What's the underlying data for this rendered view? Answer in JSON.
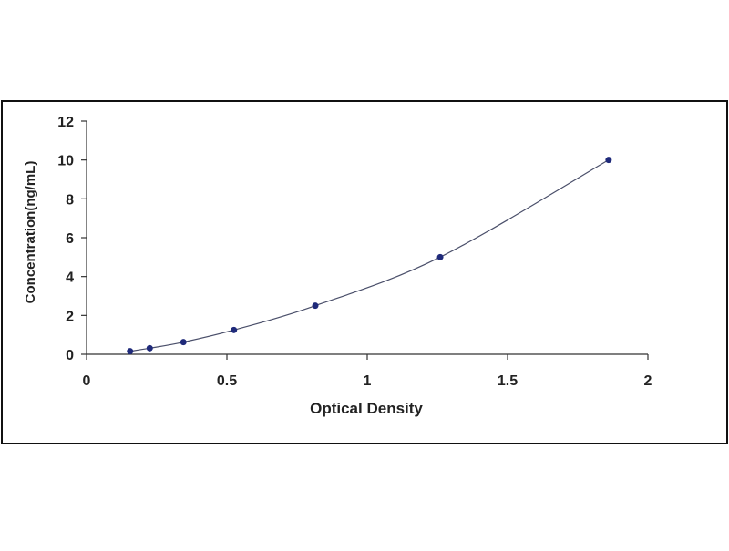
{
  "chart_data": {
    "type": "scatter",
    "xlabel": "Optical Density",
    "ylabel": "Concentration(ng/mL)",
    "xlim": [
      0,
      2
    ],
    "ylim": [
      0,
      12
    ],
    "x_ticks": [
      "0",
      "0.5",
      "1",
      "1.5",
      "2"
    ],
    "y_ticks": [
      "0",
      "2",
      "4",
      "6",
      "8",
      "10",
      "12"
    ],
    "grid": false,
    "series": [
      {
        "points": [
          {
            "x": 0.155,
            "y": 0.156
          },
          {
            "x": 0.225,
            "y": 0.313
          },
          {
            "x": 0.345,
            "y": 0.625
          },
          {
            "x": 0.525,
            "y": 1.25
          },
          {
            "x": 0.815,
            "y": 2.5
          },
          {
            "x": 1.26,
            "y": 5.0
          },
          {
            "x": 1.86,
            "y": 10.0
          }
        ]
      }
    ],
    "colors": {
      "marker": "#1f2a7a",
      "curve": "#4a4f6a",
      "axis": "#333333",
      "border": "#111111"
    }
  }
}
